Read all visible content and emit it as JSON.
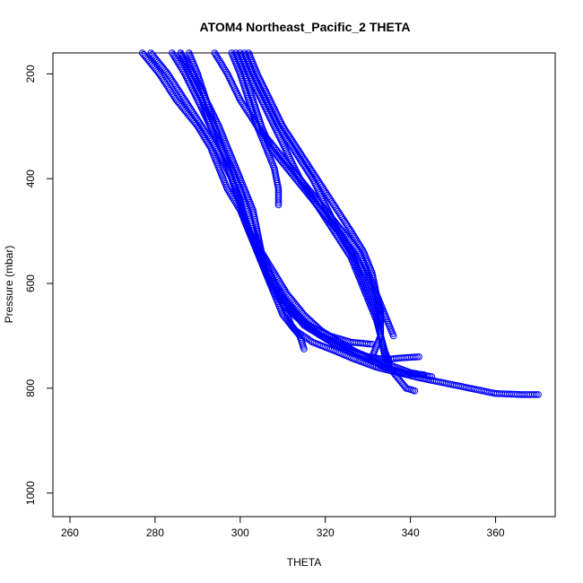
{
  "chart_data": {
    "type": "scatter",
    "title": "ATOM4 Northeast_Pacific_2 THETA",
    "xlabel": "THETA",
    "ylabel": "Pressure (mbar)",
    "xlim": [
      256,
      374
    ],
    "ylim": [
      1045,
      160
    ],
    "y_reversed": true,
    "grid": false,
    "marker": "open-circle",
    "color": "#0000ff",
    "x_ticks": [
      260,
      280,
      300,
      320,
      340,
      360
    ],
    "y_ticks": [
      200,
      400,
      600,
      800,
      1000
    ],
    "series": [
      {
        "points": [
          [
            277,
            160
          ],
          [
            281,
            200
          ],
          [
            285,
            250
          ],
          [
            290,
            300
          ],
          [
            293,
            340
          ],
          [
            295,
            380
          ],
          [
            297,
            420
          ],
          [
            300,
            460
          ],
          [
            302,
            500
          ],
          [
            304,
            540
          ],
          [
            306,
            580
          ],
          [
            309,
            620
          ],
          [
            312,
            650
          ],
          [
            316,
            680
          ],
          [
            321,
            700
          ],
          [
            326,
            712
          ],
          [
            331,
            716
          ]
        ]
      },
      {
        "points": [
          [
            279,
            160
          ],
          [
            283,
            200
          ],
          [
            287,
            250
          ],
          [
            291,
            300
          ],
          [
            295,
            350
          ],
          [
            298,
            400
          ],
          [
            300,
            440
          ],
          [
            301,
            480
          ],
          [
            303,
            520
          ],
          [
            305,
            560
          ],
          [
            307,
            600
          ],
          [
            310,
            640
          ],
          [
            314,
            670
          ],
          [
            318,
            695
          ],
          [
            322,
            715
          ],
          [
            326,
            730
          ],
          [
            330,
            740
          ],
          [
            334,
            745
          ],
          [
            338,
            742
          ],
          [
            342,
            740
          ]
        ]
      },
      {
        "points": [
          [
            284,
            160
          ],
          [
            287,
            200
          ],
          [
            290,
            250
          ],
          [
            293,
            300
          ],
          [
            296,
            350
          ],
          [
            298,
            400
          ],
          [
            300,
            450
          ],
          [
            302,
            500
          ],
          [
            305,
            540
          ],
          [
            308,
            580
          ],
          [
            311,
            620
          ],
          [
            315,
            660
          ],
          [
            319,
            690
          ],
          [
            324,
            715
          ],
          [
            329,
            740
          ],
          [
            334,
            760
          ],
          [
            339,
            772
          ],
          [
            343,
            774
          ]
        ]
      },
      {
        "points": [
          [
            286,
            160
          ],
          [
            288,
            200
          ],
          [
            291,
            250
          ],
          [
            293,
            300
          ],
          [
            296,
            350
          ],
          [
            298,
            400
          ],
          [
            300,
            450
          ],
          [
            301,
            480
          ],
          [
            303,
            520
          ],
          [
            306,
            560
          ],
          [
            308,
            600
          ],
          [
            310,
            640
          ],
          [
            312,
            680
          ],
          [
            314,
            700
          ],
          [
            315,
            725
          ]
        ]
      },
      {
        "points": [
          [
            286,
            160
          ],
          [
            289,
            200
          ],
          [
            292,
            250
          ],
          [
            295,
            300
          ],
          [
            297,
            340
          ],
          [
            299,
            380
          ],
          [
            301,
            420
          ],
          [
            303,
            460
          ],
          [
            304,
            500
          ],
          [
            305,
            540
          ],
          [
            306,
            580
          ],
          [
            308,
            620
          ],
          [
            310,
            660
          ],
          [
            313,
            690
          ],
          [
            317,
            712
          ],
          [
            322,
            728
          ],
          [
            327,
            745
          ],
          [
            332,
            760
          ],
          [
            337,
            770
          ],
          [
            342,
            780
          ],
          [
            348,
            790
          ],
          [
            354,
            800
          ],
          [
            360,
            810
          ],
          [
            366,
            812
          ],
          [
            370,
            812
          ]
        ]
      },
      {
        "points": [
          [
            288,
            160
          ],
          [
            290,
            200
          ],
          [
            292,
            250
          ],
          [
            294,
            300
          ],
          [
            296,
            350
          ],
          [
            298,
            380
          ],
          [
            300,
            420
          ],
          [
            302,
            470
          ],
          [
            304,
            520
          ],
          [
            306,
            560
          ],
          [
            308,
            600
          ],
          [
            311,
            640
          ],
          [
            315,
            680
          ],
          [
            319,
            700
          ],
          [
            324,
            720
          ],
          [
            330,
            740
          ],
          [
            335,
            755
          ],
          [
            340,
            770
          ],
          [
            345,
            778
          ]
        ]
      },
      {
        "points": [
          [
            294,
            160
          ],
          [
            297,
            200
          ],
          [
            300,
            250
          ],
          [
            304,
            300
          ],
          [
            308,
            340
          ],
          [
            312,
            380
          ],
          [
            316,
            420
          ],
          [
            320,
            460
          ],
          [
            324,
            500
          ],
          [
            328,
            540
          ],
          [
            330,
            580
          ],
          [
            332,
            620
          ],
          [
            334,
            660
          ],
          [
            336,
            700
          ]
        ]
      },
      {
        "points": [
          [
            298,
            160
          ],
          [
            300,
            200
          ],
          [
            302,
            250
          ],
          [
            304,
            300
          ],
          [
            306,
            340
          ],
          [
            308,
            380
          ],
          [
            309,
            420
          ],
          [
            309,
            450
          ]
        ]
      },
      {
        "points": [
          [
            299,
            160
          ],
          [
            301,
            200
          ],
          [
            303,
            250
          ],
          [
            305,
            300
          ],
          [
            307,
            340
          ],
          [
            310,
            370
          ],
          [
            313,
            400
          ],
          [
            316,
            430
          ],
          [
            320,
            470
          ],
          [
            324,
            510
          ],
          [
            327,
            550
          ],
          [
            330,
            590
          ],
          [
            332,
            630
          ],
          [
            333,
            670
          ],
          [
            333,
            700
          ],
          [
            332,
            720
          ],
          [
            331,
            740
          ]
        ]
      },
      {
        "points": [
          [
            300,
            160
          ],
          [
            302,
            200
          ],
          [
            305,
            250
          ],
          [
            308,
            300
          ],
          [
            311,
            350
          ],
          [
            314,
            400
          ],
          [
            318,
            450
          ],
          [
            322,
            500
          ],
          [
            326,
            550
          ],
          [
            328,
            590
          ],
          [
            330,
            630
          ],
          [
            332,
            670
          ],
          [
            333,
            700
          ],
          [
            334,
            740
          ],
          [
            335,
            760
          ],
          [
            337,
            780
          ],
          [
            339,
            800
          ],
          [
            341,
            805
          ]
        ]
      },
      {
        "points": [
          [
            301,
            160
          ],
          [
            303,
            200
          ],
          [
            306,
            250
          ],
          [
            309,
            300
          ],
          [
            313,
            350
          ],
          [
            317,
            400
          ],
          [
            320,
            450
          ],
          [
            323,
            500
          ],
          [
            326,
            540
          ],
          [
            328,
            580
          ],
          [
            330,
            620
          ],
          [
            332,
            660
          ],
          [
            333,
            700
          ],
          [
            334,
            730
          ],
          [
            335,
            750
          ]
        ]
      },
      {
        "points": [
          [
            302,
            160
          ],
          [
            304,
            200
          ],
          [
            307,
            250
          ],
          [
            310,
            300
          ],
          [
            314,
            350
          ],
          [
            318,
            400
          ],
          [
            322,
            450
          ],
          [
            326,
            500
          ],
          [
            329,
            540
          ],
          [
            331,
            580
          ],
          [
            332,
            620
          ],
          [
            333,
            650
          ],
          [
            333,
            680
          ]
        ]
      }
    ]
  }
}
